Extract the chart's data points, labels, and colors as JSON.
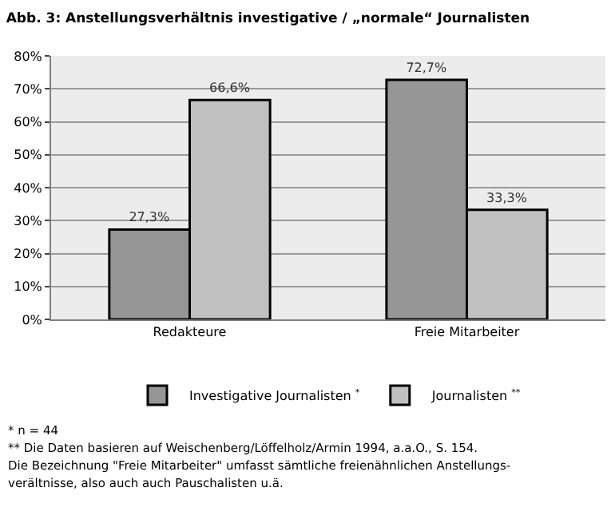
{
  "chart_data": {
    "type": "bar",
    "title": "Abb. 3: Anstellungsverhältnis investigative / „normale“ Journalisten",
    "categories": [
      "Redakteure",
      "Freie Mitarbeiter"
    ],
    "series": [
      {
        "name": "Investigative Journalisten $^{*}$",
        "color": "#969696",
        "values": [
          27.3,
          72.7
        ],
        "value_labels": [
          "27,3%",
          "72,7%"
        ]
      },
      {
        "name": "Journalisten $^{**}$",
        "color": "#c0c0c0",
        "values": [
          66.6,
          33.3
        ],
        "value_labels": [
          "66,6%",
          "33,3%"
        ]
      }
    ],
    "ylim": [
      0,
      80
    ],
    "yticks": [
      {
        "value": 0,
        "label": "0%"
      },
      {
        "value": 10,
        "label": "10%"
      },
      {
        "value": 20,
        "label": "20%"
      },
      {
        "value": 30,
        "label": "30%"
      },
      {
        "value": 40,
        "label": "40%"
      },
      {
        "value": 50,
        "label": "50%"
      },
      {
        "value": 60,
        "label": "60%"
      },
      {
        "value": 70,
        "label": "70%"
      },
      {
        "value": 80,
        "label": "80%"
      }
    ],
    "grid": "y",
    "legend": "bottom",
    "annotations": [
      "* n = 44",
      "** Die Daten basieren auf Weischenberg/Löffelholz/Armin 1994, a.a.O., S. 154.",
      "Die Bezeichnung \"Freie Mitarbeiter\" umfasst sämtliche freienähnlichen Anstellungs-",
      "verältnisse, also auch auch Pauschalisten u.ä."
    ]
  }
}
